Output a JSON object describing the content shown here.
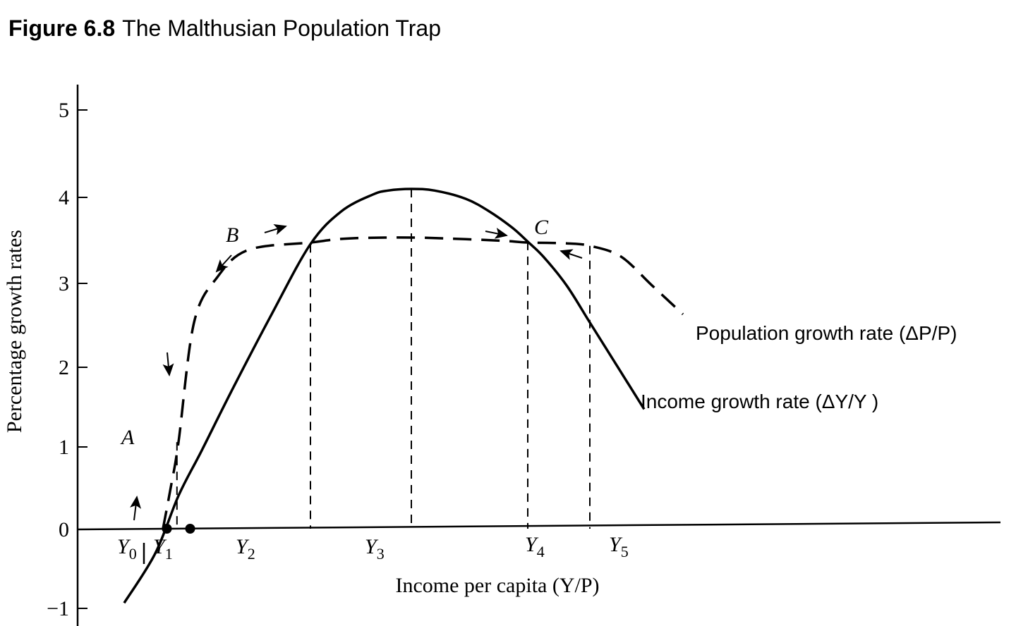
{
  "figure": {
    "number": "Figure 6.8",
    "title": "The Malthusian Population Trap"
  },
  "chart_data": {
    "type": "line",
    "title": "The Malthusian Population Trap",
    "xlabel": "Income per capita (Y/P)",
    "ylabel": "Percentage growth rates",
    "ylim": [
      -1,
      5
    ],
    "y_ticks": [
      {
        "value": 5,
        "label": "5"
      },
      {
        "value": 4,
        "label": "4"
      },
      {
        "value": 3,
        "label": "3"
      },
      {
        "value": 2,
        "label": "2"
      },
      {
        "value": 1,
        "label": "1"
      },
      {
        "value": 0,
        "label": "0"
      },
      {
        "value": -1,
        "label": "−1"
      }
    ],
    "x_ticks": [
      {
        "label": "Y",
        "sub": "0"
      },
      {
        "label": "Y",
        "sub": "1"
      },
      {
        "label": "Y",
        "sub": "2"
      },
      {
        "label": "Y",
        "sub": "3"
      },
      {
        "label": "Y",
        "sub": "4"
      },
      {
        "label": "Y",
        "sub": "5"
      }
    ],
    "series": [
      {
        "name": "Income growth rate (ΔY/Y )",
        "style": "solid",
        "x": [
          0.6,
          1.0,
          1.3,
          1.6,
          2.0,
          2.5,
          3.0,
          3.4,
          3.8,
          4.0,
          4.3,
          4.6,
          5.0,
          5.3,
          5.6,
          5.8,
          6.0,
          6.3,
          6.6,
          7.0,
          7.3
        ],
        "y": [
          -0.9,
          -0.3,
          0.4,
          0.95,
          1.7,
          2.6,
          3.45,
          3.85,
          4.05,
          4.1,
          4.12,
          4.1,
          4.0,
          3.85,
          3.65,
          3.48,
          3.3,
          2.95,
          2.5,
          1.9,
          1.45
        ]
      },
      {
        "name": "Population growth rate (ΔP/P)",
        "style": "dashed",
        "x": [
          1.1,
          1.2,
          1.3,
          1.5,
          1.8,
          2.2,
          3.0,
          3.5,
          4.3,
          5.0,
          5.5,
          5.8,
          6.3,
          6.6,
          7.0,
          7.4,
          7.8
        ],
        "y": [
          0.0,
          0.5,
          1.05,
          2.5,
          3.05,
          3.38,
          3.47,
          3.52,
          3.53,
          3.51,
          3.49,
          3.47,
          3.46,
          3.43,
          3.3,
          2.95,
          2.6
        ]
      }
    ],
    "points": [
      {
        "label": "A",
        "x": 1.28,
        "y": 1.05
      },
      {
        "label": "B",
        "x": 3.0,
        "y": 3.45
      },
      {
        "label": "C",
        "x": 5.8,
        "y": 3.48
      }
    ],
    "dots": [
      {
        "x": 1.15,
        "y": 0
      },
      {
        "x": 1.45,
        "y": 0
      }
    ],
    "verticals": [
      {
        "x": 1.28,
        "y": 1.05
      },
      {
        "x": 3.0,
        "y": 3.45
      },
      {
        "x": 4.3,
        "y": 4.12
      },
      {
        "x": 5.8,
        "y": 3.48
      },
      {
        "x": 6.6,
        "y": 3.43
      }
    ],
    "legend": "inline labels at the right ends of the curves",
    "grid": false
  }
}
